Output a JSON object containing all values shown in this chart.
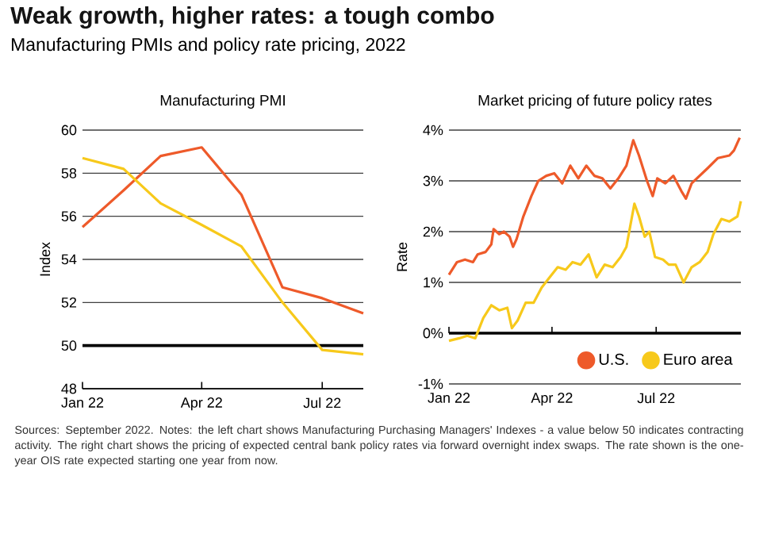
{
  "chart_data": [
    {
      "type": "other",
      "title": "Weak growth, higher rates: a tough combo",
      "subtitle": "Manufacturing PMIs and policy rate pricing, 2022",
      "annotations": [
        "Sources: September 2022. Notes: the left chart shows Manufacturing Purchasing Managers' Indexes - a value below 50 indicates contracting activity. The right chart shows the pricing of expected central bank policy rates via forward overnight index swaps. The rate shown is the one-year OIS rate expected starting one year from now."
      ]
    },
    {
      "type": "line",
      "title": "Manufacturing PMI",
      "ylabel": "Index",
      "x": [
        "2022-01-01",
        "2022-02-01",
        "2022-03-01",
        "2022-04-01",
        "2022-05-01",
        "2022-06-01",
        "2022-07-01",
        "2022-08-01"
      ],
      "series": [
        {
          "color": "#ee5a2a",
          "values": [
            55.5,
            57.2,
            58.8,
            59.2,
            57.0,
            52.7,
            52.2,
            51.5
          ]
        },
        {
          "color": "#f7c91b",
          "values": [
            58.7,
            58.2,
            56.6,
            55.6,
            54.6,
            52.0,
            49.8,
            49.6
          ]
        }
      ],
      "xlim": [
        "2022-01-01",
        "2022-08-01"
      ],
      "xticks": [
        {
          "value": "2022-01-01",
          "label": "Jan 22"
        },
        {
          "value": "2022-04-01",
          "label": "Apr 22"
        },
        {
          "value": "2022-07-01",
          "label": "Jul 22"
        }
      ],
      "ylim": [
        48,
        60
      ],
      "yticks": [
        48,
        50,
        52,
        54,
        56,
        58,
        60
      ],
      "grid": "y",
      "ref_lines": [
        {
          "axis": "y",
          "value": 50,
          "color": "#000000"
        }
      ]
    },
    {
      "type": "line",
      "title": "Market pricing of future policy rates",
      "ylabel": "Rate",
      "series": [
        {
          "name": "U.S.",
          "color": "#ee5a2a",
          "x": [
            "2022-01-01",
            "2022-01-08",
            "2022-01-15",
            "2022-01-22",
            "2022-01-26",
            "2022-02-02",
            "2022-02-07",
            "2022-02-09",
            "2022-02-14",
            "2022-02-18",
            "2022-02-23",
            "2022-02-26",
            "2022-03-01",
            "2022-03-07",
            "2022-03-14",
            "2022-03-20",
            "2022-03-27",
            "2022-04-03",
            "2022-04-10",
            "2022-04-17",
            "2022-04-24",
            "2022-05-01",
            "2022-05-08",
            "2022-05-15",
            "2022-05-22",
            "2022-05-29",
            "2022-06-05",
            "2022-06-11",
            "2022-06-16",
            "2022-06-23",
            "2022-06-28",
            "2022-07-02",
            "2022-07-09",
            "2022-07-16",
            "2022-07-23",
            "2022-07-27",
            "2022-08-01",
            "2022-08-08",
            "2022-08-15",
            "2022-08-24",
            "2022-09-03",
            "2022-09-07",
            "2022-09-12"
          ],
          "values": [
            1.15,
            1.4,
            1.45,
            1.4,
            1.55,
            1.6,
            1.75,
            2.05,
            1.95,
            2.0,
            1.9,
            1.7,
            1.85,
            2.3,
            2.7,
            3.0,
            3.1,
            3.15,
            2.95,
            3.3,
            3.05,
            3.3,
            3.1,
            3.05,
            2.85,
            3.05,
            3.3,
            3.8,
            3.5,
            3.0,
            2.7,
            3.05,
            2.95,
            3.1,
            2.8,
            2.65,
            2.95,
            3.1,
            3.25,
            3.45,
            3.5,
            3.6,
            3.85
          ]
        },
        {
          "name": "Euro area",
          "color": "#f7c91b",
          "x": [
            "2022-01-01",
            "2022-01-10",
            "2022-01-17",
            "2022-01-24",
            "2022-01-31",
            "2022-02-07",
            "2022-02-14",
            "2022-02-21",
            "2022-02-25",
            "2022-03-02",
            "2022-03-09",
            "2022-03-16",
            "2022-03-23",
            "2022-03-30",
            "2022-04-06",
            "2022-04-13",
            "2022-04-19",
            "2022-04-26",
            "2022-05-03",
            "2022-05-10",
            "2022-05-17",
            "2022-05-24",
            "2022-05-31",
            "2022-06-05",
            "2022-06-12",
            "2022-06-16",
            "2022-06-21",
            "2022-06-25",
            "2022-06-30",
            "2022-07-07",
            "2022-07-12",
            "2022-07-18",
            "2022-07-25",
            "2022-08-01",
            "2022-08-08",
            "2022-08-15",
            "2022-08-20",
            "2022-08-27",
            "2022-09-03",
            "2022-09-10",
            "2022-09-13"
          ],
          "values": [
            -0.15,
            -0.1,
            -0.05,
            -0.1,
            0.3,
            0.55,
            0.45,
            0.5,
            0.1,
            0.25,
            0.6,
            0.6,
            0.9,
            1.1,
            1.3,
            1.25,
            1.4,
            1.35,
            1.55,
            1.1,
            1.35,
            1.3,
            1.5,
            1.7,
            2.55,
            2.3,
            1.9,
            2.0,
            1.5,
            1.45,
            1.35,
            1.35,
            1.0,
            1.3,
            1.4,
            1.6,
            1.95,
            2.25,
            2.2,
            2.3,
            2.6
          ]
        }
      ],
      "xlim": [
        "2022-01-01",
        "2022-09-13"
      ],
      "xticks": [
        {
          "value": "2022-01-01",
          "label": "Jan 22"
        },
        {
          "value": "2022-04-01",
          "label": "Apr 22"
        },
        {
          "value": "2022-07-01",
          "label": "Jul 22"
        }
      ],
      "ylim": [
        -1,
        4
      ],
      "yticks": [
        {
          "value": -1,
          "label": "-1%"
        },
        {
          "value": 0,
          "label": "0%"
        },
        {
          "value": 1,
          "label": "1%"
        },
        {
          "value": 2,
          "label": "2%"
        },
        {
          "value": 3,
          "label": "3%"
        },
        {
          "value": 4,
          "label": "4%"
        }
      ],
      "grid": "y",
      "legend": "bottom right",
      "ref_lines": [
        {
          "axis": "y",
          "value": 0,
          "color": "#000000"
        }
      ]
    }
  ]
}
